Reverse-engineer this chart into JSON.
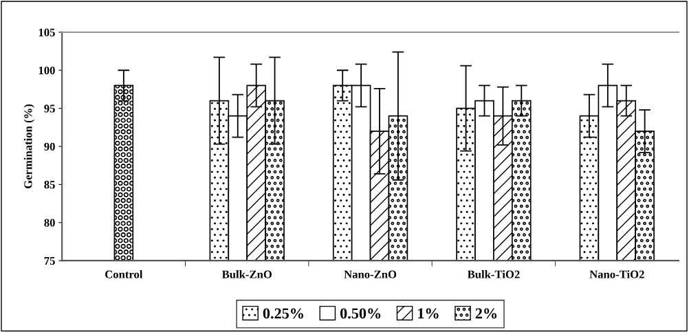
{
  "chart_data": {
    "type": "bar",
    "ylabel": "Germination (%)",
    "categories": [
      "Control",
      "Bulk-ZnO",
      "Nano-ZnO",
      "Bulk-TiO2",
      "Nano-TiO2"
    ],
    "ylim": [
      75,
      105
    ],
    "yticks": [
      75,
      80,
      85,
      90,
      95,
      100,
      105
    ],
    "grid": false,
    "legend": "bottom",
    "series": [
      {
        "color": "#000000",
        "values": [
          98,
          null,
          null,
          null,
          null
        ],
        "errors": [
          2,
          null,
          null,
          null,
          null
        ]
      },
      {
        "name": "0.25%",
        "color": "#000000",
        "values": [
          null,
          96,
          98,
          95,
          94
        ],
        "errors": [
          null,
          5.7,
          2,
          5.6,
          2.8
        ]
      },
      {
        "name": "0.50%",
        "color": "#000000",
        "values": [
          null,
          94,
          98,
          96,
          98
        ],
        "errors": [
          null,
          2.8,
          2.8,
          2,
          2.8
        ]
      },
      {
        "name": "1%",
        "color": "#000000",
        "values": [
          null,
          98,
          92,
          94,
          96
        ],
        "errors": [
          null,
          2.8,
          5.6,
          3.8,
          2
        ]
      },
      {
        "name": "2%",
        "color": "#000000",
        "values": [
          null,
          96,
          94,
          96,
          92
        ],
        "errors": [
          null,
          5.7,
          8.4,
          2,
          2.8
        ]
      }
    ]
  }
}
